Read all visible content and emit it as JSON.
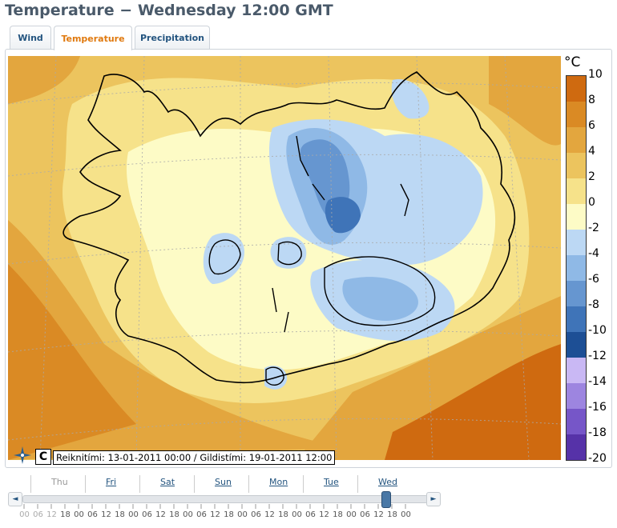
{
  "title": "Temperature − Wednesday 12:00 GMT",
  "tabs": [
    {
      "label": "Wind"
    },
    {
      "label": "Temperature"
    },
    {
      "label": "Precipitation"
    }
  ],
  "legend": {
    "unit": "°C",
    "labels": [
      "10",
      "8",
      "6",
      "4",
      "2",
      "0",
      "-2",
      "-4",
      "-6",
      "-8",
      "-10",
      "-12",
      "-14",
      "-16",
      "-18",
      "-20"
    ],
    "colors": [
      "#cf6a10",
      "#da8a24",
      "#e3a63e",
      "#ecc45e",
      "#f6e28a",
      "#fdfbc6",
      "#bcd8f4",
      "#8fb9e6",
      "#6696d0",
      "#3f74b8",
      "#1d4f95",
      "#c9b8f4",
      "#9d85e0",
      "#7656c8",
      "#5632a8",
      "#2d0c80"
    ]
  },
  "map": {
    "timestamp_label": "C",
    "info_text": "Reiknitími: 13-01-2011 00:00 / Gildistími: 19-01-2011 12:00"
  },
  "timeline": {
    "days": [
      "Thu",
      "Fri",
      "Sat",
      "Sun",
      "Mon",
      "Tue",
      "Wed"
    ],
    "hours": [
      "00",
      "06",
      "12",
      "18",
      "00",
      "06",
      "12",
      "18",
      "00",
      "06",
      "12",
      "18",
      "00",
      "06",
      "12",
      "18",
      "00",
      "06",
      "12",
      "18",
      "00",
      "06",
      "12",
      "18",
      "00",
      "06",
      "12",
      "18",
      "00"
    ],
    "current_day": "Wed",
    "current_hour": "12",
    "prev_label": "◄",
    "next_label": "►"
  }
}
